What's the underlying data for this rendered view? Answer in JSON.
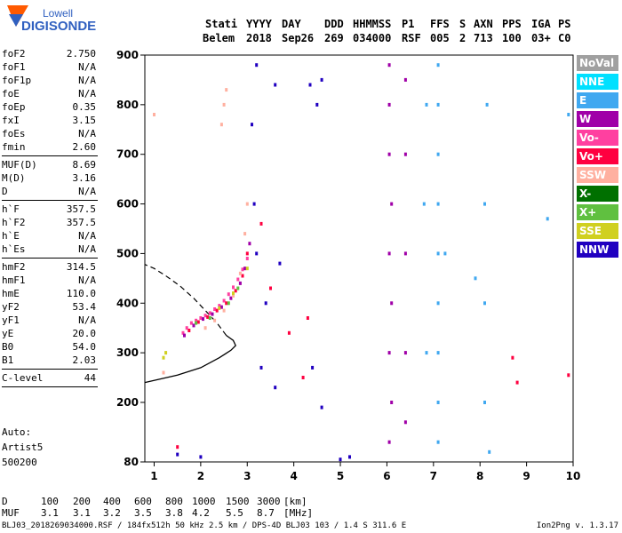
{
  "logo": {
    "line1": "Lowell",
    "line2": "DIGISONDE"
  },
  "header": {
    "labels": [
      "Stati",
      "YYYY",
      "DAY",
      "DDD",
      "HHMMSS",
      "P1",
      "FFS",
      "S",
      "AXN",
      "PPS",
      "IGA",
      "PS"
    ],
    "values": [
      "Belem",
      "2018",
      "Sep26",
      "269",
      "034000",
      "RSF",
      "005",
      "2",
      "713",
      "100",
      "03+",
      "C0"
    ]
  },
  "params": {
    "group1": [
      {
        "label": "foF2",
        "value": "2.750"
      },
      {
        "label": "foF1",
        "value": "N/A"
      },
      {
        "label": "foF1p",
        "value": "N/A"
      },
      {
        "label": "foE",
        "value": "N/A"
      },
      {
        "label": "foEp",
        "value": "0.35"
      },
      {
        "label": "fxI",
        "value": "3.15"
      },
      {
        "label": "foEs",
        "value": "N/A"
      },
      {
        "label": "fmin",
        "value": "2.60"
      }
    ],
    "group2": [
      {
        "label": "MUF(D)",
        "value": "8.69"
      },
      {
        "label": "M(D)",
        "value": "3.16"
      },
      {
        "label": "D",
        "value": "N/A"
      }
    ],
    "group3": [
      {
        "label": "h`F",
        "value": "357.5"
      },
      {
        "label": "h`F2",
        "value": "357.5"
      },
      {
        "label": "h`E",
        "value": "N/A"
      },
      {
        "label": "h`Es",
        "value": "N/A"
      }
    ],
    "group4": [
      {
        "label": "hmF2",
        "value": "314.5"
      },
      {
        "label": "hmF1",
        "value": "N/A"
      },
      {
        "label": "hmE",
        "value": "110.0"
      },
      {
        "label": "yF2",
        "value": "53.4"
      },
      {
        "label": "yF1",
        "value": "N/A"
      },
      {
        "label": "yE",
        "value": "20.0"
      },
      {
        "label": "B0",
        "value": "54.0"
      },
      {
        "label": "B1",
        "value": "2.03"
      }
    ],
    "group5": [
      {
        "label": "C-level",
        "value": "44"
      }
    ]
  },
  "autoscale": {
    "line1": "Auto:",
    "line2": "Artist5",
    "line3": "500200"
  },
  "legend": [
    {
      "label": "NoVal",
      "color": "#a0a0a0"
    },
    {
      "label": "NNE",
      "color": "#00e0ff"
    },
    {
      "label": "E",
      "color": "#40a8f0"
    },
    {
      "label": "W",
      "color": "#a000a8"
    },
    {
      "label": "Vo-",
      "color": "#ff40a0"
    },
    {
      "label": "Vo+",
      "color": "#ff0040"
    },
    {
      "label": "SSW",
      "color": "#ffb0a0"
    },
    {
      "label": "X-",
      "color": "#007000"
    },
    {
      "label": "X+",
      "color": "#60c040"
    },
    {
      "label": "SSE",
      "color": "#d0d020"
    },
    {
      "label": "NNW",
      "color": "#2000c0"
    }
  ],
  "dtable": {
    "row1_label": "D",
    "row1_values": [
      "100",
      "200",
      "400",
      "600",
      "800",
      "1000",
      "1500",
      "3000",
      "[km]"
    ],
    "row2_label": "MUF",
    "row2_values": [
      "3.1",
      "3.1",
      "3.2",
      "3.5",
      "3.8",
      "4.2",
      "5.5",
      "8.7",
      "[MHz]"
    ]
  },
  "footer": {
    "left": "BLJ03_2018269034000.RSF / 184fx512h 50 kHz 2.5 km / DPS-4D BLJ03 103 / 1.4 S 311.6 E",
    "right": "Ion2Png v. 1.3.17"
  },
  "chart_data": {
    "type": "scatter",
    "xlim": [
      0.8,
      10
    ],
    "ylim": [
      80,
      900
    ],
    "xticks": [
      1,
      2,
      3,
      4,
      5,
      6,
      7,
      8,
      9,
      10
    ],
    "yticks": [
      80,
      200,
      300,
      400,
      500,
      600,
      700,
      800,
      900
    ],
    "grid": false,
    "legend_position": "right",
    "series": [
      {
        "name": "F2-trace-main",
        "color": "#ff40a0",
        "points": [
          [
            1.62,
            340
          ],
          [
            1.7,
            350
          ],
          [
            1.8,
            360
          ],
          [
            1.9,
            365
          ],
          [
            2.0,
            370
          ],
          [
            2.1,
            375
          ],
          [
            2.2,
            380
          ],
          [
            2.3,
            388
          ],
          [
            2.4,
            395
          ],
          [
            2.5,
            405
          ],
          [
            2.6,
            418
          ],
          [
            2.7,
            432
          ],
          [
            2.8,
            448
          ],
          [
            2.9,
            468
          ],
          [
            3.0,
            490
          ]
        ]
      },
      {
        "name": "F2-trace-w",
        "color": "#a000a8",
        "points": [
          [
            1.65,
            335
          ],
          [
            1.85,
            355
          ],
          [
            2.05,
            368
          ],
          [
            2.25,
            378
          ],
          [
            2.45,
            392
          ],
          [
            2.65,
            410
          ],
          [
            2.85,
            440
          ],
          [
            2.95,
            470
          ],
          [
            3.05,
            520
          ]
        ]
      },
      {
        "name": "F2-trace-vo",
        "color": "#ff0040",
        "points": [
          [
            1.75,
            345
          ],
          [
            1.95,
            362
          ],
          [
            2.15,
            372
          ],
          [
            2.35,
            385
          ],
          [
            2.55,
            400
          ],
          [
            2.75,
            425
          ],
          [
            2.9,
            455
          ],
          [
            3.0,
            500
          ]
        ]
      },
      {
        "name": "F2-trace-ssw",
        "color": "#ffb0a0",
        "points": [
          [
            2.1,
            350
          ],
          [
            2.3,
            365
          ],
          [
            2.5,
            385
          ],
          [
            2.7,
            415
          ],
          [
            2.85,
            460
          ],
          [
            2.95,
            540
          ],
          [
            3.0,
            600
          ],
          [
            2.45,
            760
          ],
          [
            2.5,
            800
          ],
          [
            2.55,
            830
          ],
          [
            1.0,
            780
          ],
          [
            1.2,
            260
          ]
        ]
      },
      {
        "name": "F2-trace-green",
        "color": "#60c040",
        "points": [
          [
            1.9,
            360
          ],
          [
            2.2,
            370
          ],
          [
            2.6,
            400
          ],
          [
            2.8,
            430
          ]
        ]
      },
      {
        "name": "F2-trace-sse",
        "color": "#d0d020",
        "points": [
          [
            1.2,
            290
          ],
          [
            1.25,
            300
          ],
          [
            2.4,
            390
          ],
          [
            2.7,
            420
          ],
          [
            3.0,
            470
          ]
        ]
      },
      {
        "name": "interference-e",
        "color": "#40a8f0",
        "points": [
          [
            7.1,
            120
          ],
          [
            7.1,
            200
          ],
          [
            7.1,
            300
          ],
          [
            7.1,
            400
          ],
          [
            7.1,
            500
          ],
          [
            7.1,
            600
          ],
          [
            7.1,
            700
          ],
          [
            7.1,
            800
          ],
          [
            7.1,
            880
          ],
          [
            6.85,
            300
          ],
          [
            6.8,
            600
          ],
          [
            6.85,
            800
          ],
          [
            7.25,
            500
          ],
          [
            8.1,
            200
          ],
          [
            8.1,
            400
          ],
          [
            8.1,
            600
          ],
          [
            8.15,
            800
          ],
          [
            8.2,
            100
          ],
          [
            7.9,
            450
          ],
          [
            9.45,
            570
          ],
          [
            9.9,
            780
          ]
        ]
      },
      {
        "name": "interference-w",
        "color": "#a000a8",
        "points": [
          [
            6.05,
            880
          ],
          [
            6.05,
            800
          ],
          [
            6.05,
            700
          ],
          [
            6.1,
            600
          ],
          [
            6.05,
            500
          ],
          [
            6.1,
            400
          ],
          [
            6.05,
            300
          ],
          [
            6.1,
            200
          ],
          [
            6.05,
            120
          ],
          [
            6.4,
            850
          ],
          [
            6.4,
            700
          ],
          [
            6.4,
            500
          ],
          [
            6.4,
            300
          ],
          [
            6.4,
            160
          ]
        ]
      },
      {
        "name": "nnw",
        "color": "#2000c0",
        "points": [
          [
            3.2,
            880
          ],
          [
            3.6,
            840
          ],
          [
            3.1,
            760
          ],
          [
            3.15,
            600
          ],
          [
            3.2,
            500
          ],
          [
            3.4,
            400
          ],
          [
            3.7,
            480
          ],
          [
            4.35,
            840
          ],
          [
            4.5,
            800
          ],
          [
            4.6,
            850
          ],
          [
            3.3,
            270
          ],
          [
            3.6,
            230
          ],
          [
            4.4,
            270
          ],
          [
            4.6,
            190
          ],
          [
            1.5,
            95
          ],
          [
            2.0,
            90
          ],
          [
            5.0,
            85
          ],
          [
            5.2,
            90
          ]
        ]
      },
      {
        "name": "misc-red",
        "color": "#ff0040",
        "points": [
          [
            3.3,
            560
          ],
          [
            3.5,
            430
          ],
          [
            3.9,
            340
          ],
          [
            4.2,
            250
          ],
          [
            4.3,
            370
          ],
          [
            8.7,
            290
          ],
          [
            8.8,
            240
          ],
          [
            9.9,
            255
          ],
          [
            1.5,
            110
          ]
        ]
      }
    ],
    "profile": {
      "solid": [
        [
          0.8,
          240
        ],
        [
          1.5,
          255
        ],
        [
          2.0,
          270
        ],
        [
          2.4,
          290
        ],
        [
          2.65,
          305
        ],
        [
          2.75,
          314.5
        ],
        [
          2.7,
          325
        ],
        [
          2.55,
          335
        ]
      ],
      "dashed": [
        [
          2.55,
          335
        ],
        [
          2.35,
          360
        ],
        [
          2.1,
          385
        ],
        [
          1.85,
          410
        ],
        [
          1.55,
          435
        ],
        [
          1.25,
          455
        ],
        [
          1.0,
          470
        ],
        [
          0.8,
          478
        ]
      ]
    }
  }
}
